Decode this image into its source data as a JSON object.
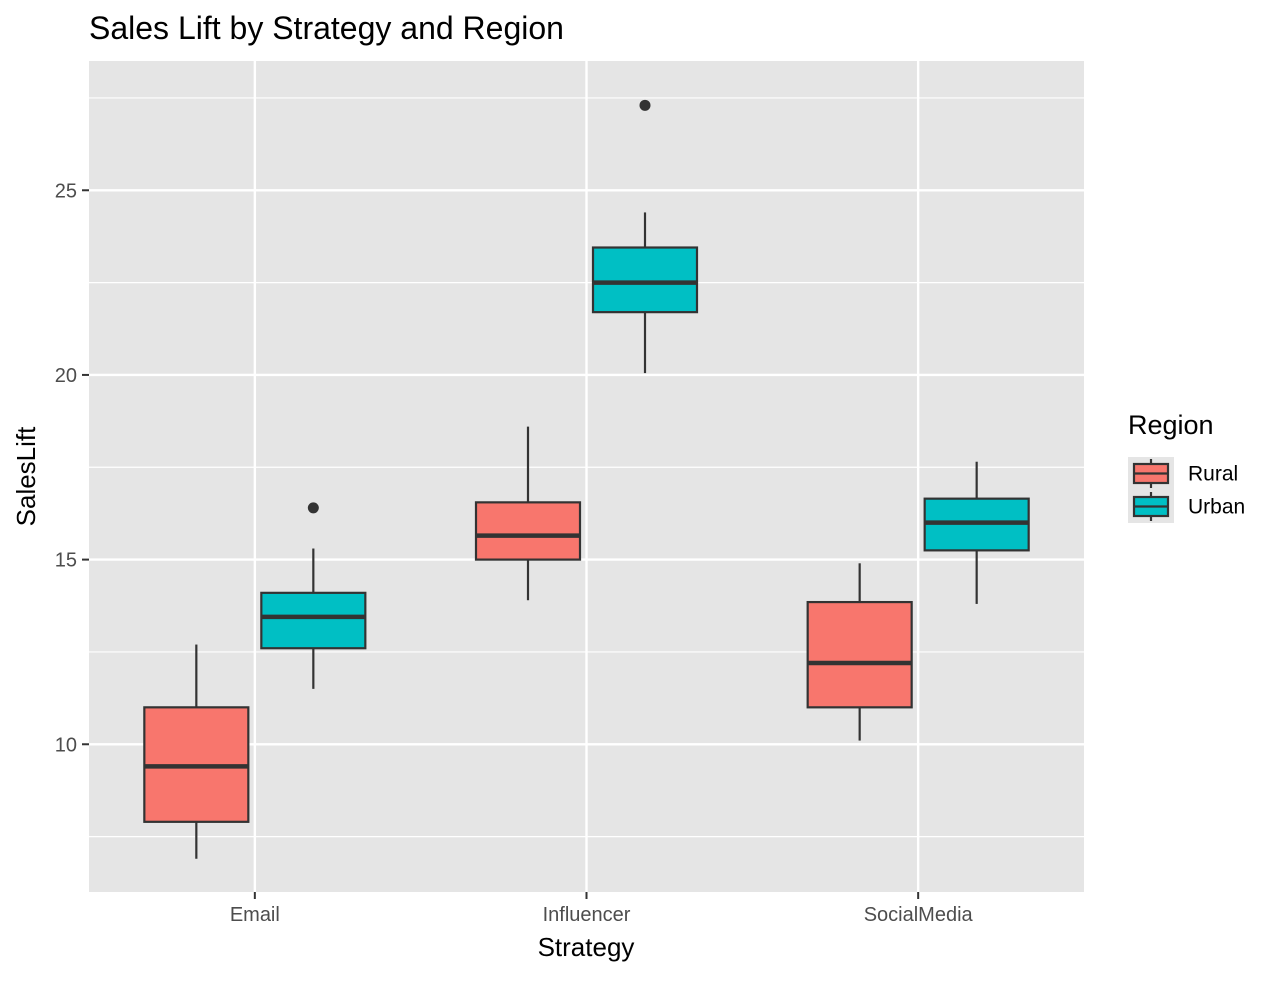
{
  "chart_data": {
    "type": "boxplot",
    "title": "Sales Lift by Strategy and Region",
    "xlabel": "Strategy",
    "ylabel": "SalesLift",
    "categories": [
      "Email",
      "Influencer",
      "SocialMedia"
    ],
    "y_ticks": [
      10,
      15,
      20,
      25
    ],
    "ylim": [
      6.0,
      28.5
    ],
    "grid": true,
    "legend": {
      "title": "Region",
      "position": "right",
      "entries": [
        "Rural",
        "Urban"
      ]
    },
    "colors": {
      "Rural": "#F8766D",
      "Urban": "#00BFC4",
      "panel_background": "#E5E5E5",
      "grid": "#FFFFFF",
      "outline": "#333333"
    },
    "series": [
      {
        "name": "Rural",
        "boxes": [
          {
            "category": "Email",
            "min": 6.9,
            "q1": 7.9,
            "median": 9.4,
            "q3": 11.0,
            "max": 12.7,
            "outliers": []
          },
          {
            "category": "Influencer",
            "min": 13.9,
            "q1": 15.0,
            "median": 15.65,
            "q3": 16.55,
            "max": 18.6,
            "outliers": []
          },
          {
            "category": "SocialMedia",
            "min": 10.1,
            "q1": 11.0,
            "median": 12.2,
            "q3": 13.85,
            "max": 14.9,
            "outliers": []
          }
        ]
      },
      {
        "name": "Urban",
        "boxes": [
          {
            "category": "Email",
            "min": 11.5,
            "q1": 12.6,
            "median": 13.45,
            "q3": 14.1,
            "max": 15.3,
            "outliers": [
              16.4
            ]
          },
          {
            "category": "Influencer",
            "min": 20.05,
            "q1": 21.7,
            "median": 22.5,
            "q3": 23.45,
            "max": 24.4,
            "outliers": [
              27.3
            ]
          },
          {
            "category": "SocialMedia",
            "min": 13.8,
            "q1": 15.25,
            "median": 16.0,
            "q3": 16.65,
            "max": 17.65,
            "outliers": []
          }
        ]
      }
    ]
  }
}
